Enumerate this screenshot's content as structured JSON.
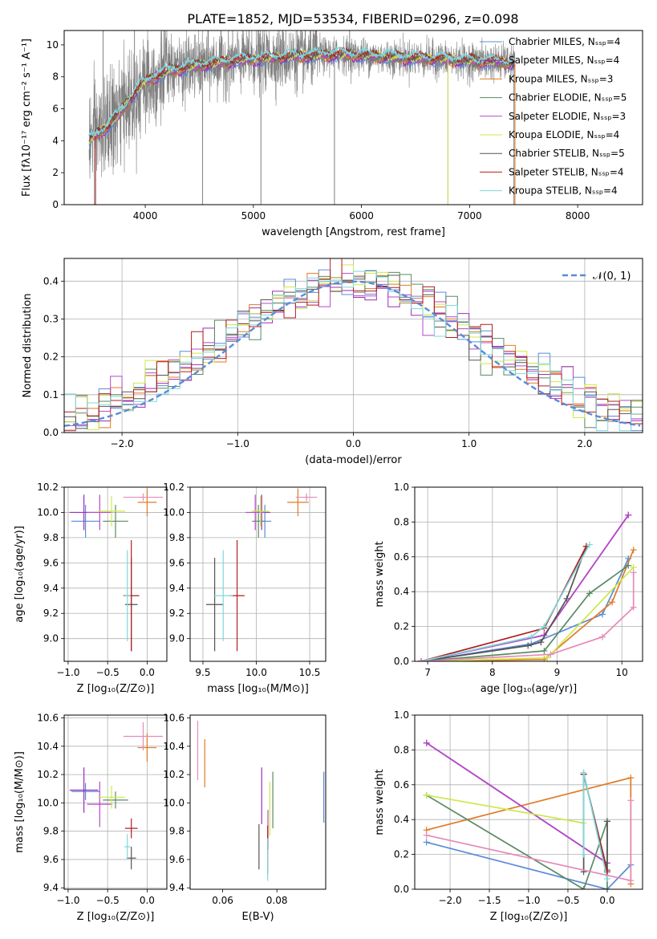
{
  "colors": {
    "chabrier_miles": "#5b8bd8",
    "salpeter_miles": "#9b2cb8",
    "kroupa_miles": "#e07b24",
    "chabrier_elodie": "#5a8a62",
    "salpeter_elodie": "#b548c8",
    "kroupa_elodie": "#cde84a",
    "chabrier_stelib": "#555555",
    "salpeter_stelib": "#b21e1e",
    "kroupa_stelib": "#7ed8dc",
    "pink": "#e58ab8",
    "normal": "#5b8bd8",
    "grid": "#b0b0b0"
  },
  "chart_data": [
    {
      "id": "spectrum",
      "type": "line",
      "title": "PLATE=1852, MJD=53534, FIBERID=0296, z=0.098",
      "xlabel": "wavelength [Angstrom, rest frame]",
      "ylabel": "Flux [fλ10⁻¹⁷ erg cm⁻² s⁻¹ A⁻¹]",
      "xlim": [
        3250,
        8600
      ],
      "ylim": [
        0,
        10.9
      ],
      "xticks": [
        4000,
        5000,
        6000,
        7000,
        8000
      ],
      "yticks": [
        0,
        2,
        4,
        6,
        8,
        10
      ],
      "grid": false,
      "legend_position": "top-right",
      "continuum": {
        "x": [
          3480,
          3550,
          3650,
          3750,
          3850,
          3950,
          4050,
          4200,
          4400,
          4600,
          4800,
          5000,
          5200,
          5500,
          5800,
          6100,
          6400,
          6700,
          7000,
          7300,
          7420
        ],
        "y": [
          4.0,
          4.4,
          4.9,
          5.6,
          6.5,
          7.4,
          7.9,
          8.3,
          8.6,
          8.8,
          9.0,
          9.1,
          9.2,
          9.3,
          9.4,
          9.3,
          9.2,
          9.1,
          9.0,
          8.9,
          8.8
        ]
      },
      "data_range": [
        3480,
        7420
      ],
      "series": [
        {
          "name": "Chabrier MILES, Nₛₛₚ=4",
          "color_key": "chabrier_miles"
        },
        {
          "name": "Salpeter MILES, Nₛₛₚ=4",
          "color_key": "salpeter_miles"
        },
        {
          "name": "Kroupa MILES, Nₛₛₚ=3",
          "color_key": "kroupa_miles"
        },
        {
          "name": "Chabrier ELODIE, Nₛₛₚ=5",
          "color_key": "chabrier_elodie"
        },
        {
          "name": "Salpeter ELODIE, Nₛₛₚ=3",
          "color_key": "salpeter_elodie"
        },
        {
          "name": "Kroupa ELODIE, Nₛₛₚ=4",
          "color_key": "kroupa_elodie"
        },
        {
          "name": "Chabrier STELIB, Nₛₛₚ=5",
          "color_key": "chabrier_stelib"
        },
        {
          "name": "Salpeter STELIB, Nₛₛₚ=4",
          "color_key": "salpeter_stelib"
        },
        {
          "name": "Kroupa STELIB, Nₛₛₚ=4",
          "color_key": "kroupa_stelib"
        }
      ]
    },
    {
      "id": "residuals",
      "type": "histogram",
      "xlabel": "(data-model)/error",
      "ylabel": "Normed distribution",
      "xlim": [
        -2.5,
        2.5
      ],
      "ylim": [
        0,
        0.46
      ],
      "xticks": [
        -2,
        -1,
        0,
        1,
        2
      ],
      "yticks": [
        0.0,
        0.1,
        0.2,
        0.3,
        0.4
      ],
      "grid": true,
      "legend_position": "top-right",
      "normal_label": "𝒩(0, 1)",
      "bin_width": 0.1
    },
    {
      "id": "age_vs_Z",
      "type": "errorbar",
      "xlabel": "Z [log₁₀(Z/Z⊙)]",
      "ylabel": "age  [log₁₀(age/yr)]",
      "xlim": [
        -1.05,
        0.25
      ],
      "ylim": [
        8.82,
        10.2
      ],
      "xticks": [
        -1.0,
        -0.5,
        0.0
      ],
      "yticks": [
        9.0,
        9.2,
        9.4,
        9.6,
        9.8,
        10.0,
        10.2
      ],
      "grid": true,
      "points": [
        {
          "c": "chabrier_miles",
          "x": -0.78,
          "xerr": 0.18,
          "y": 9.93,
          "yerr": 0.13
        },
        {
          "c": "salpeter_miles",
          "x": -0.8,
          "xerr": 0.18,
          "y": 10.0,
          "yerr": 0.14
        },
        {
          "c": "kroupa_miles",
          "x": 0.0,
          "xerr": 0.12,
          "y": 10.08,
          "yerr": 0.11
        },
        {
          "c": "chabrier_elodie",
          "x": -0.4,
          "xerr": 0.16,
          "y": 9.93,
          "yerr": 0.13
        },
        {
          "c": "salpeter_elodie",
          "x": -0.6,
          "xerr": 0.16,
          "y": 10.0,
          "yerr": 0.14
        },
        {
          "c": "kroupa_elodie",
          "x": -0.45,
          "xerr": 0.17,
          "y": 10.01,
          "yerr": 0.12
        },
        {
          "c": "chabrier_stelib",
          "x": -0.2,
          "xerr": 0.08,
          "y": 9.27,
          "yerr": 0.37
        },
        {
          "c": "salpeter_stelib",
          "x": -0.2,
          "xerr": 0.1,
          "y": 9.34,
          "yerr": 0.44
        },
        {
          "c": "kroupa_stelib",
          "x": -0.25,
          "xerr": 0.04,
          "y": 9.34,
          "yerr": 0.36
        },
        {
          "c": "pink",
          "x": -0.05,
          "xerr": 0.25,
          "y": 10.12,
          "yerr": 0.03
        }
      ]
    },
    {
      "id": "age_vs_mass",
      "type": "errorbar",
      "xlabel": "mass [log₁₀(M/M⊙)]",
      "ylabel": "",
      "xlim": [
        9.38,
        10.65
      ],
      "ylim": [
        8.82,
        10.2
      ],
      "xticks": [
        9.5,
        10.0,
        10.5
      ],
      "yticks": [
        9.0,
        9.2,
        9.4,
        9.6,
        9.8,
        10.0,
        10.2
      ],
      "grid": true,
      "points": [
        {
          "c": "chabrier_miles",
          "x": 10.08,
          "xerr": 0.06,
          "y": 9.93,
          "yerr": 0.13
        },
        {
          "c": "salpeter_miles",
          "x": 10.05,
          "xerr": 0.08,
          "y": 10.0,
          "yerr": 0.14
        },
        {
          "c": "kroupa_miles",
          "x": 10.39,
          "xerr": 0.1,
          "y": 10.08,
          "yerr": 0.11
        },
        {
          "c": "chabrier_elodie",
          "x": 10.02,
          "xerr": 0.06,
          "y": 9.93,
          "yerr": 0.13
        },
        {
          "c": "salpeter_elodie",
          "x": 9.99,
          "xerr": 0.09,
          "y": 10.0,
          "yerr": 0.14
        },
        {
          "c": "kroupa_elodie",
          "x": 10.04,
          "xerr": 0.08,
          "y": 10.01,
          "yerr": 0.12
        },
        {
          "c": "chabrier_stelib",
          "x": 9.61,
          "xerr": 0.08,
          "y": 9.27,
          "yerr": 0.37
        },
        {
          "c": "salpeter_stelib",
          "x": 9.82,
          "xerr": 0.07,
          "y": 9.34,
          "yerr": 0.44
        },
        {
          "c": "kroupa_stelib",
          "x": 9.69,
          "xerr": 0.09,
          "y": 9.34,
          "yerr": 0.36
        },
        {
          "c": "pink",
          "x": 10.47,
          "xerr": 0.1,
          "y": 10.12,
          "yerr": 0.03
        }
      ]
    },
    {
      "id": "weight_vs_age",
      "type": "line",
      "xlabel": "age  [log₁₀(age/yr)]",
      "ylabel": "mass weight",
      "xlim": [
        6.8,
        10.32
      ],
      "ylim": [
        0,
        1.0
      ],
      "xticks": [
        7,
        8,
        9,
        10
      ],
      "yticks": [
        0.0,
        0.2,
        0.4,
        0.6,
        0.8,
        1.0
      ],
      "grid": true,
      "series": [
        {
          "c": "chabrier_miles",
          "x": [
            6.9,
            8.6,
            9.7,
            10.1
          ],
          "y": [
            0.0,
            0.1,
            0.27,
            0.59
          ]
        },
        {
          "c": "salpeter_miles",
          "x": [
            6.9,
            8.8,
            10.1
          ],
          "y": [
            0.0,
            0.15,
            0.84
          ]
        },
        {
          "c": "kroupa_miles",
          "x": [
            6.9,
            8.8,
            9.85,
            10.18
          ],
          "y": [
            0.0,
            0.01,
            0.34,
            0.64
          ]
        },
        {
          "c": "chabrier_elodie",
          "x": [
            6.9,
            8.8,
            9.5,
            10.1
          ],
          "y": [
            0.0,
            0.06,
            0.39,
            0.55
          ]
        },
        {
          "c": "salpeter_elodie",
          "x": [
            6.9,
            8.8,
            10.1
          ],
          "y": [
            0.0,
            0.15,
            0.84
          ]
        },
        {
          "c": "kroupa_elodie",
          "x": [
            6.9,
            8.85,
            10.18
          ],
          "y": [
            0.0,
            0.02,
            0.54
          ]
        },
        {
          "c": "chabrier_stelib",
          "x": [
            6.9,
            8.55,
            8.75,
            9.15,
            9.45
          ],
          "y": [
            0.0,
            0.09,
            0.11,
            0.36,
            0.66
          ]
        },
        {
          "c": "salpeter_stelib",
          "x": [
            6.9,
            8.8,
            9.45
          ],
          "y": [
            0.0,
            0.19,
            0.66
          ]
        },
        {
          "c": "kroupa_stelib",
          "x": [
            6.9,
            8.6,
            8.8,
            9.5
          ],
          "y": [
            0.0,
            0.14,
            0.2,
            0.67
          ]
        },
        {
          "c": "pink",
          "x": [
            6.9,
            8.9,
            9.7,
            10.18,
            10.18
          ],
          "y": [
            0.0,
            0.04,
            0.14,
            0.31,
            0.51
          ]
        }
      ]
    },
    {
      "id": "mass_vs_Z",
      "type": "errorbar",
      "xlabel": "Z [log₁₀(Z/Z⊙)]",
      "ylabel": "mass [log₁₀(M/M⊙)]",
      "xlim": [
        -1.05,
        0.25
      ],
      "ylim": [
        9.39,
        10.62
      ],
      "xticks": [
        -1.0,
        -0.5,
        0.0
      ],
      "yticks": [
        9.4,
        9.6,
        9.8,
        10.0,
        10.2,
        10.4,
        10.6
      ],
      "grid": true,
      "points": [
        {
          "c": "chabrier_miles",
          "x": -0.78,
          "xerr": 0.18,
          "y": 10.08,
          "yerr": 0.06
        },
        {
          "c": "salpeter_miles",
          "x": -0.8,
          "xerr": 0.18,
          "y": 10.09,
          "yerr": 0.16
        },
        {
          "c": "kroupa_miles",
          "x": 0.0,
          "xerr": 0.12,
          "y": 10.39,
          "yerr": 0.1
        },
        {
          "c": "chabrier_elodie",
          "x": -0.4,
          "xerr": 0.16,
          "y": 10.02,
          "yerr": 0.06
        },
        {
          "c": "salpeter_elodie",
          "x": -0.6,
          "xerr": 0.16,
          "y": 9.99,
          "yerr": 0.16
        },
        {
          "c": "kroupa_elodie",
          "x": -0.45,
          "xerr": 0.17,
          "y": 10.04,
          "yerr": 0.08
        },
        {
          "c": "chabrier_stelib",
          "x": -0.2,
          "xerr": 0.06,
          "y": 9.61,
          "yerr": 0.08
        },
        {
          "c": "salpeter_stelib",
          "x": -0.2,
          "xerr": 0.08,
          "y": 9.82,
          "yerr": 0.07
        },
        {
          "c": "kroupa_stelib",
          "x": -0.25,
          "xerr": 0.04,
          "y": 9.69,
          "yerr": 0.09
        },
        {
          "c": "pink",
          "x": -0.05,
          "xerr": 0.25,
          "y": 10.47,
          "yerr": 0.1
        }
      ]
    },
    {
      "id": "mass_vs_EBV",
      "type": "errorbar",
      "xlabel": "E(B-V)",
      "ylabel": "",
      "xlim": [
        0.048,
        0.098
      ],
      "ylim": [
        9.39,
        10.62
      ],
      "xticks": [
        0.06,
        0.08
      ],
      "yticks": [
        9.4,
        9.6,
        9.8,
        10.0,
        10.2,
        10.4,
        10.6
      ],
      "grid": false,
      "points": [
        {
          "c": "chabrier_miles",
          "x": 0.0973,
          "xerr": 0,
          "y": 10.04,
          "yerr": 0.18
        },
        {
          "c": "salpeter_miles",
          "x": 0.0744,
          "xerr": 0,
          "y": 10.05,
          "yerr": 0.2
        },
        {
          "c": "kroupa_miles",
          "x": 0.0534,
          "xerr": 0,
          "y": 10.28,
          "yerr": 0.17
        },
        {
          "c": "chabrier_elodie",
          "x": 0.0785,
          "xerr": 0,
          "y": 10.02,
          "yerr": 0.2
        },
        {
          "c": "salpeter_elodie",
          "x": 0.0767,
          "xerr": 0,
          "y": 9.81,
          "yerr": 0.14
        },
        {
          "c": "kroupa_elodie",
          "x": 0.0774,
          "xerr": 0,
          "y": 9.96,
          "yerr": 0.19
        },
        {
          "c": "chabrier_stelib",
          "x": 0.0734,
          "xerr": 0,
          "y": 9.69,
          "yerr": 0.16
        },
        {
          "c": "salpeter_stelib",
          "x": 0.0766,
          "xerr": 0,
          "y": 9.67,
          "yerr": 0.17
        },
        {
          "c": "kroupa_stelib",
          "x": 0.0766,
          "xerr": 0,
          "y": 9.6,
          "yerr": 0.15
        },
        {
          "c": "pink",
          "x": 0.0508,
          "xerr": 0,
          "y": 10.37,
          "yerr": 0.21
        }
      ]
    },
    {
      "id": "weight_vs_Z",
      "type": "line",
      "xlabel": "Z [log₁₀(Z/Z⊙)]",
      "ylabel": "mass weight",
      "xlim": [
        -2.45,
        0.45
      ],
      "ylim": [
        0,
        1.0
      ],
      "xticks": [
        -2.0,
        -1.5,
        -1.0,
        -0.5,
        0.0
      ],
      "yticks": [
        0.0,
        0.2,
        0.4,
        0.6,
        0.8,
        1.0
      ],
      "grid": true,
      "series": [
        {
          "c": "chabrier_miles",
          "x": [
            -2.3,
            0.0,
            0.3
          ],
          "y": [
            0.27,
            0.0,
            0.14
          ]
        },
        {
          "c": "salpeter_miles",
          "x": [
            -2.3,
            0.0
          ],
          "y": [
            0.84,
            0.15
          ]
        },
        {
          "c": "kroupa_miles",
          "x": [
            -2.3,
            0.3,
            0.3
          ],
          "y": [
            0.34,
            0.64,
            0.03
          ]
        },
        {
          "c": "chabrier_elodie",
          "x": [
            -2.3,
            -0.3,
            0.0,
            0.0
          ],
          "y": [
            0.54,
            0.0,
            0.39,
            0.0
          ]
        },
        {
          "c": "salpeter_elodie",
          "x": [
            -2.3,
            0.0
          ],
          "y": [
            0.84,
            0.15
          ]
        },
        {
          "c": "kroupa_elodie",
          "x": [
            -2.3,
            -0.3
          ],
          "y": [
            0.54,
            0.38
          ]
        },
        {
          "c": "chabrier_stelib",
          "x": [
            -0.3,
            -0.3,
            0.0,
            0.0
          ],
          "y": [
            0.1,
            0.66,
            0.11,
            0.39
          ]
        },
        {
          "c": "salpeter_stelib",
          "x": [
            -0.3,
            0.0
          ],
          "y": [
            0.66,
            0.1
          ]
        },
        {
          "c": "kroupa_stelib",
          "x": [
            -0.3,
            -0.3,
            0.0
          ],
          "y": [
            0.2,
            0.67,
            0.06
          ]
        },
        {
          "c": "pink",
          "x": [
            -2.3,
            0.3,
            0.3
          ],
          "y": [
            0.31,
            0.05,
            0.51
          ]
        }
      ]
    }
  ]
}
